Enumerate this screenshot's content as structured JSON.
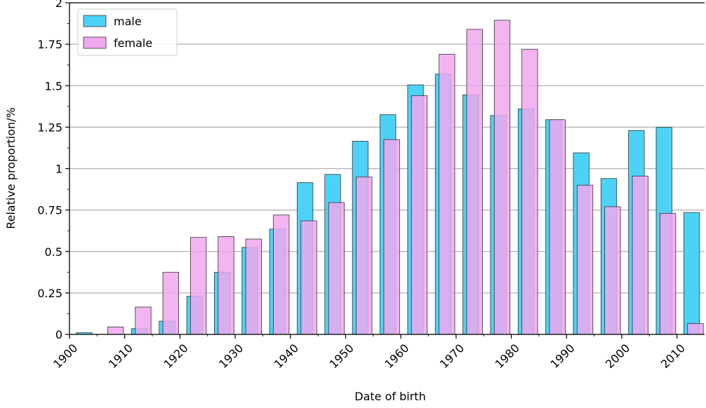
{
  "chart_data": {
    "type": "bar",
    "title": "",
    "xlabel": "Date of birth",
    "ylabel": "Relative proportion/%",
    "xlim": [
      1900,
      2015
    ],
    "ylim": [
      0,
      2
    ],
    "x_ticks": [
      "1900",
      "1910",
      "1920",
      "1930",
      "1940",
      "1950",
      "1960",
      "1970",
      "1980",
      "1990",
      "2000",
      "2010"
    ],
    "y_ticks": [
      "0",
      "0.25",
      "0.5",
      "0.75",
      "1",
      "1.25",
      "1.5",
      "1.75",
      "2"
    ],
    "grid": "horizontal",
    "legend_position": "top-left",
    "series": [
      {
        "name": "male",
        "color": "#4dd2f7",
        "x": [
          1903,
          1908,
          1913,
          1918,
          1923,
          1928,
          1933,
          1938,
          1943,
          1948,
          1953,
          1958,
          1963,
          1968,
          1973,
          1978,
          1983,
          1988,
          1993,
          1998,
          2003,
          2008,
          2013
        ],
        "values": [
          0.01,
          0.0,
          0.035,
          0.08,
          0.23,
          0.375,
          0.525,
          0.635,
          0.915,
          0.965,
          1.165,
          1.325,
          1.505,
          1.57,
          1.445,
          1.32,
          1.36,
          1.295,
          1.095,
          0.94,
          1.23,
          1.25,
          0.735
        ]
      },
      {
        "name": "female",
        "color": "#f0a8ef",
        "x": [
          1903,
          1908,
          1913,
          1918,
          1923,
          1928,
          1933,
          1938,
          1943,
          1948,
          1953,
          1958,
          1963,
          1968,
          1973,
          1978,
          1983,
          1988,
          1993,
          1998,
          2003,
          2008,
          2013
        ],
        "values": [
          0.0,
          0.045,
          0.165,
          0.375,
          0.585,
          0.59,
          0.575,
          0.72,
          0.685,
          0.795,
          0.95,
          1.175,
          1.44,
          1.69,
          1.84,
          1.895,
          1.72,
          1.295,
          0.9,
          0.77,
          0.955,
          0.73,
          0.065
        ]
      }
    ]
  }
}
